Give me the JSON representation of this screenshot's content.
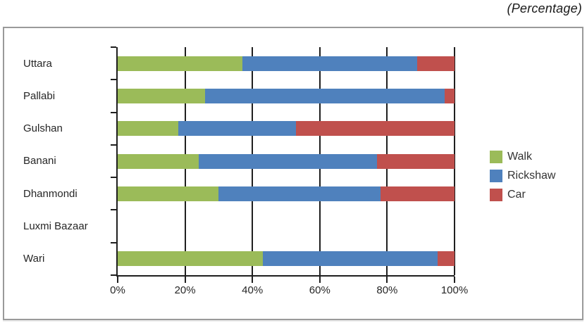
{
  "title": "(Percentage)",
  "chart_data": {
    "type": "bar",
    "orientation": "horizontal",
    "stacked": true,
    "title": "(Percentage)",
    "categories": [
      "Uttara",
      "Pallabi",
      "Gulshan",
      "Banani",
      "Dhanmondi",
      "Luxmi Bazaar",
      "Wari"
    ],
    "series": [
      {
        "name": "Walk",
        "color": "#9BBB59",
        "values": [
          37,
          26,
          18,
          24,
          30,
          0,
          43
        ]
      },
      {
        "name": "Rickshaw",
        "color": "#4F81BD",
        "values": [
          52,
          71,
          35,
          53,
          48,
          0,
          52
        ]
      },
      {
        "name": "Car",
        "color": "#C0504D",
        "values": [
          11,
          3,
          47,
          23,
          22,
          0,
          5
        ]
      }
    ],
    "x_ticks": [
      "0%",
      "20%",
      "40%",
      "60%",
      "80%",
      "100%"
    ],
    "xlim": [
      0,
      100
    ],
    "gridlines": "vertical",
    "legend_position": "right"
  },
  "colors": {
    "axis": "#1f1f1f",
    "text": "#262626",
    "frame_border": "#9a9a9a",
    "background": "#ffffff"
  }
}
